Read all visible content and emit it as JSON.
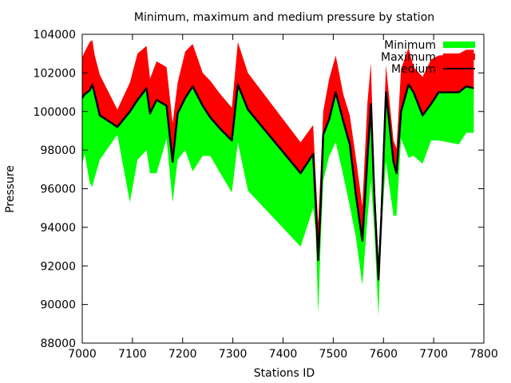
{
  "chart_data": {
    "type": "area",
    "title": "Minimum, maximum and medium pressure by station",
    "xlabel": "Stations ID",
    "ylabel": "Pressure",
    "xlim": [
      7000,
      7800
    ],
    "ylim": [
      88000,
      104000
    ],
    "xticks": [
      7000,
      7100,
      7200,
      7300,
      7400,
      7500,
      7600,
      7700,
      7800
    ],
    "yticks": [
      88000,
      90000,
      92000,
      94000,
      96000,
      98000,
      100000,
      102000,
      104000
    ],
    "grid": false,
    "legend_position": "top-right",
    "colors": {
      "minimum": "#00ff00",
      "maximum": "#ff0000",
      "medium": "#000000"
    },
    "x": [
      7000,
      7005,
      7015,
      7020,
      7025,
      7035,
      7070,
      7095,
      7110,
      7128,
      7135,
      7148,
      7168,
      7180,
      7190,
      7205,
      7220,
      7240,
      7255,
      7275,
      7298,
      7310,
      7330,
      7435,
      7460,
      7465,
      7470,
      7475,
      7480,
      7492,
      7505,
      7520,
      7533,
      7545,
      7558,
      7568,
      7575,
      7582,
      7590,
      7596,
      7605,
      7620,
      7626,
      7635,
      7650,
      7660,
      7678,
      7695,
      7710,
      7750,
      7765,
      7780
    ],
    "series": [
      {
        "name": "Minimum",
        "values": [
          97300,
          97800,
          96300,
          96100,
          96600,
          97500,
          98800,
          95300,
          97500,
          98000,
          96800,
          96800,
          98600,
          95300,
          97500,
          98000,
          96900,
          97700,
          97700,
          96800,
          95800,
          98400,
          95900,
          93000,
          95000,
          93800,
          89500,
          93300,
          96400,
          97700,
          98400,
          96700,
          95100,
          93500,
          91000,
          94400,
          96400,
          93800,
          89400,
          93900,
          97400,
          94600,
          94600,
          98600,
          97600,
          97700,
          97300,
          98500,
          98500,
          98300,
          98900,
          98900
        ]
      },
      {
        "name": "Maximum",
        "values": [
          102800,
          103100,
          103600,
          103700,
          102900,
          101900,
          100100,
          101500,
          103000,
          103400,
          101700,
          102600,
          102300,
          99400,
          101500,
          103100,
          103500,
          102000,
          101600,
          100900,
          100200,
          103600,
          102000,
          98400,
          99300,
          96600,
          94200,
          97000,
          100000,
          101700,
          102900,
          100900,
          99800,
          97600,
          95100,
          100400,
          102500,
          96700,
          92200,
          95800,
          102400,
          98500,
          98100,
          102200,
          103300,
          102300,
          101800,
          102700,
          102900,
          103000,
          103200,
          103200
        ]
      },
      {
        "name": "Medium",
        "values": [
          100700,
          100900,
          101100,
          101400,
          100900,
          99800,
          99200,
          100000,
          100600,
          101200,
          99900,
          100600,
          100300,
          97400,
          99900,
          100700,
          101300,
          100300,
          99700,
          99100,
          98500,
          101400,
          100100,
          96800,
          97800,
          95200,
          92300,
          95200,
          98800,
          99600,
          101000,
          99500,
          98300,
          95700,
          93300,
          97500,
          100400,
          95600,
          91300,
          94600,
          101000,
          97400,
          96800,
          100000,
          101400,
          101000,
          99800,
          100400,
          101000,
          101000,
          101300,
          101200
        ]
      }
    ]
  }
}
